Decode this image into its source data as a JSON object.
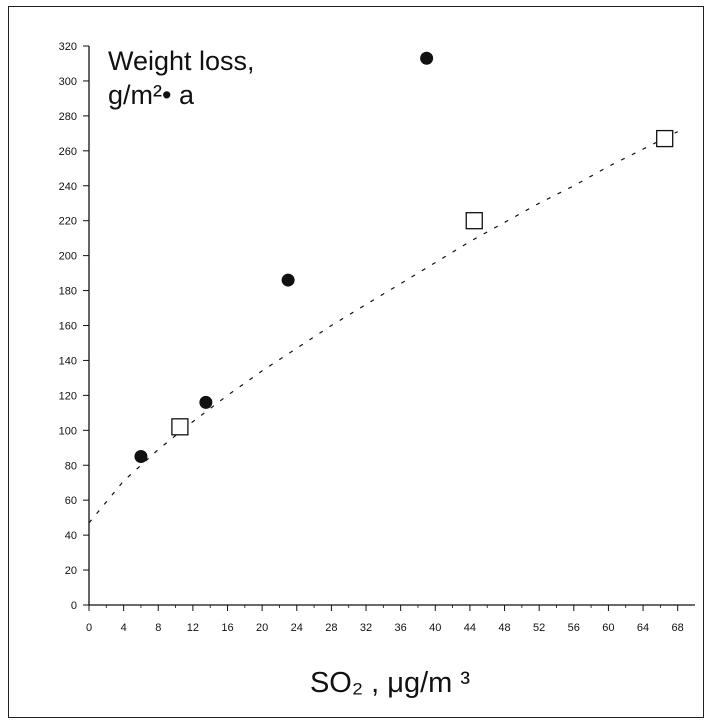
{
  "chart_data": {
    "type": "scatter",
    "ylabel": "Weight loss,",
    "ylabel_units": "g/m²• a",
    "xlabel": "SO₂ , μg/m ³",
    "xlim": [
      0,
      70
    ],
    "ylim": [
      0,
      320
    ],
    "x_ticks": [
      "0",
      "4",
      "8",
      "12",
      "16",
      "20",
      "24",
      "28",
      "32",
      "36",
      "40",
      "44",
      "48",
      "52",
      "56",
      "60",
      "64",
      "68"
    ],
    "y_ticks": [
      "0",
      "20",
      "40",
      "60",
      "80",
      "100",
      "120",
      "140",
      "160",
      "180",
      "200",
      "220",
      "240",
      "260",
      "280",
      "300",
      "320"
    ],
    "grid": false,
    "series": [
      {
        "marker": "filled-circle",
        "color": "#111111",
        "points": [
          {
            "x": 6,
            "y": 85
          },
          {
            "x": 13.5,
            "y": 116
          },
          {
            "x": 23,
            "y": 186
          },
          {
            "x": 39,
            "y": 313
          }
        ]
      },
      {
        "marker": "open-square",
        "color": "#111111",
        "points": [
          {
            "x": 10.5,
            "y": 102
          },
          {
            "x": 44.5,
            "y": 220
          },
          {
            "x": 66.5,
            "y": 267
          }
        ]
      }
    ],
    "trendline": {
      "style": "dashed",
      "points": [
        {
          "x": 0,
          "y": 47
        },
        {
          "x": 4,
          "y": 71
        },
        {
          "x": 8,
          "y": 89
        },
        {
          "x": 12,
          "y": 105
        },
        {
          "x": 16,
          "y": 120
        },
        {
          "x": 20,
          "y": 134
        },
        {
          "x": 24,
          "y": 147
        },
        {
          "x": 28,
          "y": 160
        },
        {
          "x": 32,
          "y": 172
        },
        {
          "x": 36,
          "y": 184
        },
        {
          "x": 40,
          "y": 196
        },
        {
          "x": 44,
          "y": 208
        },
        {
          "x": 48,
          "y": 219
        },
        {
          "x": 52,
          "y": 230
        },
        {
          "x": 56,
          "y": 240
        },
        {
          "x": 60,
          "y": 251
        },
        {
          "x": 64,
          "y": 261
        },
        {
          "x": 68,
          "y": 271
        }
      ]
    }
  }
}
